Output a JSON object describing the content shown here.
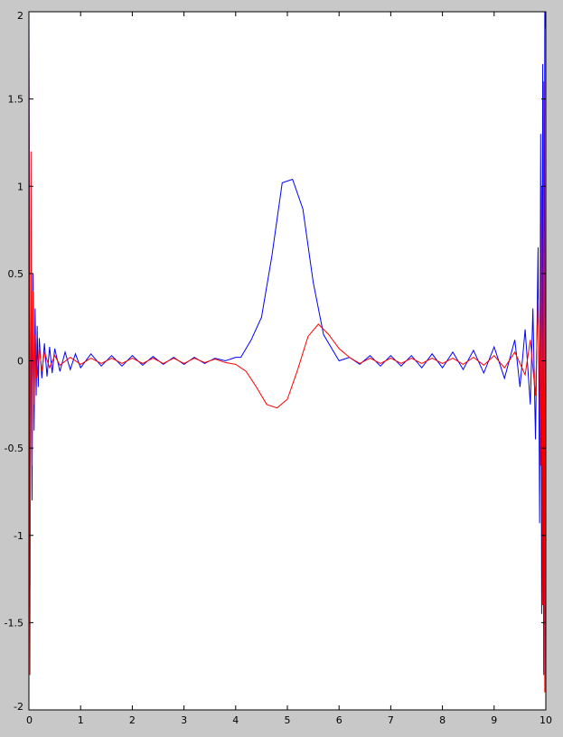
{
  "chart_data": {
    "type": "line",
    "title": "",
    "xlabel": "",
    "ylabel": "",
    "xlim": [
      0,
      10
    ],
    "ylim": [
      -2,
      2
    ],
    "xticks": [
      0,
      1,
      2,
      3,
      4,
      5,
      6,
      7,
      8,
      9,
      10
    ],
    "yticks": [
      -2,
      -1.5,
      -1,
      -0.5,
      0,
      0.5,
      1,
      1.5,
      2
    ],
    "grid": false,
    "legend": "none",
    "background_color": "#c8c8c8",
    "plot_background_color": "#ffffff",
    "series": [
      {
        "color": "#0000ff",
        "x": [
          0,
          0.02,
          0.04,
          0.06,
          0.08,
          0.1,
          0.12,
          0.14,
          0.16,
          0.18,
          0.2,
          0.25,
          0.3,
          0.35,
          0.4,
          0.45,
          0.5,
          0.6,
          0.7,
          0.8,
          0.9,
          1.0,
          1.2,
          1.4,
          1.6,
          1.8,
          2.0,
          2.2,
          2.4,
          2.6,
          2.8,
          3.0,
          3.2,
          3.4,
          3.6,
          3.8,
          4.0,
          4.1,
          4.3,
          4.5,
          4.7,
          4.9,
          5.1,
          5.3,
          5.5,
          5.7,
          5.9,
          6.0,
          6.2,
          6.4,
          6.6,
          6.8,
          7.0,
          7.2,
          7.4,
          7.6,
          7.8,
          8.0,
          8.2,
          8.4,
          8.6,
          8.8,
          9.0,
          9.2,
          9.4,
          9.5,
          9.6,
          9.7,
          9.75,
          9.8,
          9.85,
          9.88,
          9.9,
          9.92,
          9.94,
          9.96,
          9.98,
          10.0
        ],
        "y": [
          2.0,
          -1.3,
          0.8,
          -0.8,
          0.5,
          -0.4,
          0.3,
          -0.2,
          0.2,
          -0.15,
          0.13,
          -0.1,
          0.1,
          -0.09,
          0.08,
          -0.07,
          0.07,
          -0.06,
          0.05,
          -0.05,
          0.04,
          -0.04,
          0.04,
          -0.03,
          0.03,
          -0.03,
          0.03,
          -0.025,
          0.025,
          -0.02,
          0.02,
          -0.02,
          0.02,
          -0.015,
          0.015,
          0.0,
          0.02,
          0.02,
          0.12,
          0.25,
          0.6,
          1.02,
          1.04,
          0.87,
          0.45,
          0.15,
          0.05,
          0.0,
          0.02,
          -0.02,
          0.03,
          -0.03,
          0.03,
          -0.03,
          0.03,
          -0.04,
          0.04,
          -0.04,
          0.05,
          -0.05,
          0.06,
          -0.07,
          0.08,
          -0.1,
          0.12,
          -0.15,
          0.18,
          -0.25,
          0.3,
          -0.45,
          0.65,
          -0.93,
          1.3,
          -1.45,
          1.7,
          -1.8,
          2.0,
          1.9
        ]
      },
      {
        "color": "#ff0000",
        "x": [
          0,
          0.02,
          0.04,
          0.06,
          0.08,
          0.1,
          0.12,
          0.15,
          0.2,
          0.25,
          0.3,
          0.4,
          0.5,
          0.6,
          0.8,
          1.0,
          1.2,
          1.4,
          1.6,
          1.8,
          2.0,
          2.2,
          2.4,
          2.6,
          2.8,
          3.0,
          3.2,
          3.4,
          3.6,
          3.8,
          4.0,
          4.2,
          4.4,
          4.6,
          4.8,
          5.0,
          5.2,
          5.4,
          5.6,
          5.8,
          6.0,
          6.2,
          6.4,
          6.6,
          6.8,
          7.0,
          7.2,
          7.4,
          7.6,
          7.8,
          8.0,
          8.2,
          8.4,
          8.6,
          8.8,
          9.0,
          9.2,
          9.4,
          9.6,
          9.7,
          9.8,
          9.85,
          9.9,
          9.92,
          9.94,
          9.96,
          9.98,
          10.0
        ],
        "y": [
          1.9,
          -1.8,
          1.2,
          -0.6,
          0.4,
          -0.25,
          0.15,
          -0.1,
          0.08,
          -0.06,
          0.05,
          -0.04,
          0.03,
          -0.025,
          0.02,
          -0.02,
          0.015,
          -0.015,
          0.015,
          -0.015,
          0.015,
          -0.015,
          0.015,
          -0.015,
          0.015,
          -0.015,
          0.015,
          -0.01,
          0.01,
          -0.01,
          -0.02,
          -0.06,
          -0.15,
          -0.25,
          -0.27,
          -0.22,
          -0.05,
          0.14,
          0.21,
          0.15,
          0.07,
          0.02,
          -0.015,
          0.015,
          -0.015,
          0.015,
          -0.015,
          0.015,
          -0.015,
          0.015,
          -0.015,
          0.015,
          -0.02,
          0.02,
          -0.025,
          0.03,
          -0.04,
          0.05,
          -0.08,
          0.12,
          -0.2,
          0.35,
          -0.6,
          1.0,
          -1.4,
          1.6,
          -1.9,
          2.0
        ]
      }
    ]
  }
}
